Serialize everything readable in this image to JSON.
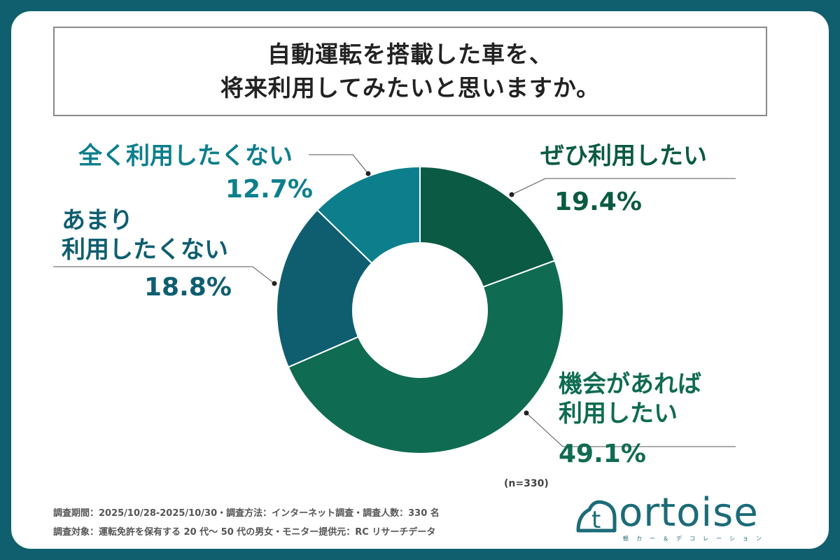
{
  "title": {
    "line1": "自動運転を搭載した車を、",
    "line2": "将来利用してみたいと思いますか。"
  },
  "chart_data": {
    "type": "pie",
    "donut": true,
    "sample_note": "(n=330)",
    "slices": [
      {
        "label_lines": [
          "ぜひ利用したい"
        ],
        "value": 19.4,
        "display": "19.4%",
        "color": "#0b5a43",
        "text_color": "#0b5a43"
      },
      {
        "label_lines": [
          "機会があれば",
          "利用したい"
        ],
        "value": 49.1,
        "display": "49.1%",
        "color": "#0f6b52",
        "text_color": "#0f6b52"
      },
      {
        "label_lines": [
          "あまり",
          "利用したくない"
        ],
        "value": 18.8,
        "display": "18.8%",
        "color": "#0f5e70",
        "text_color": "#0f5e70"
      },
      {
        "label_lines": [
          "全く利用したくない"
        ],
        "value": 12.7,
        "display": "12.7%",
        "color": "#0d7f8c",
        "text_color": "#0d7f8c"
      }
    ]
  },
  "footer": {
    "line1": "調査期間：2025/10/28-2025/10/30・調査方法：インターネット調査・調査人数：330 名",
    "line2": "調査対象：運転免許を保有する 20 代〜 50 代の男女・モニター提供元：RC リサーチデータ"
  },
  "logo": {
    "word": "ortoise",
    "letter": "t",
    "sub": "軽カー＆デコレーション"
  }
}
